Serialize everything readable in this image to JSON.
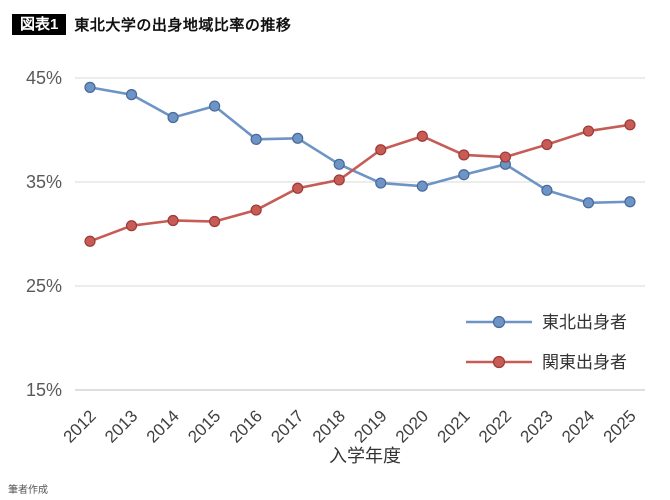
{
  "header": {
    "badge": "図表1",
    "title": "東北大学の出身地域比率の推移"
  },
  "footer": {
    "credit": "筆者作成"
  },
  "chart_data": {
    "type": "line",
    "x": [
      2012,
      2013,
      2014,
      2015,
      2016,
      2017,
      2018,
      2019,
      2020,
      2021,
      2022,
      2023,
      2024,
      2025
    ],
    "series": [
      {
        "name": "東北出身者",
        "color": "#6d94c4",
        "edge": "#46699a",
        "values": [
          44.1,
          43.4,
          41.2,
          42.3,
          39.1,
          39.2,
          36.7,
          34.9,
          34.6,
          35.7,
          36.7,
          34.2,
          33.0,
          33.1
        ]
      },
      {
        "name": "関東出身者",
        "color": "#c75b56",
        "edge": "#9c3a36",
        "values": [
          29.3,
          30.8,
          31.3,
          31.2,
          32.3,
          34.4,
          35.2,
          38.1,
          39.4,
          37.6,
          37.4,
          38.6,
          39.9,
          40.5
        ]
      }
    ],
    "xlabel": "入学年度",
    "ylabel": "",
    "ylim": [
      15,
      45
    ],
    "yticks": [
      15,
      25,
      35,
      45
    ],
    "ytick_suffix": "%",
    "grid": true,
    "legend_position": "inside-bottom-right",
    "colors": {
      "gridline": "#d9d9d9",
      "bottom_axis": "#bfbfbf",
      "tick_label": "#595959",
      "x_label": "#404040",
      "legend_text": "#333333"
    }
  }
}
